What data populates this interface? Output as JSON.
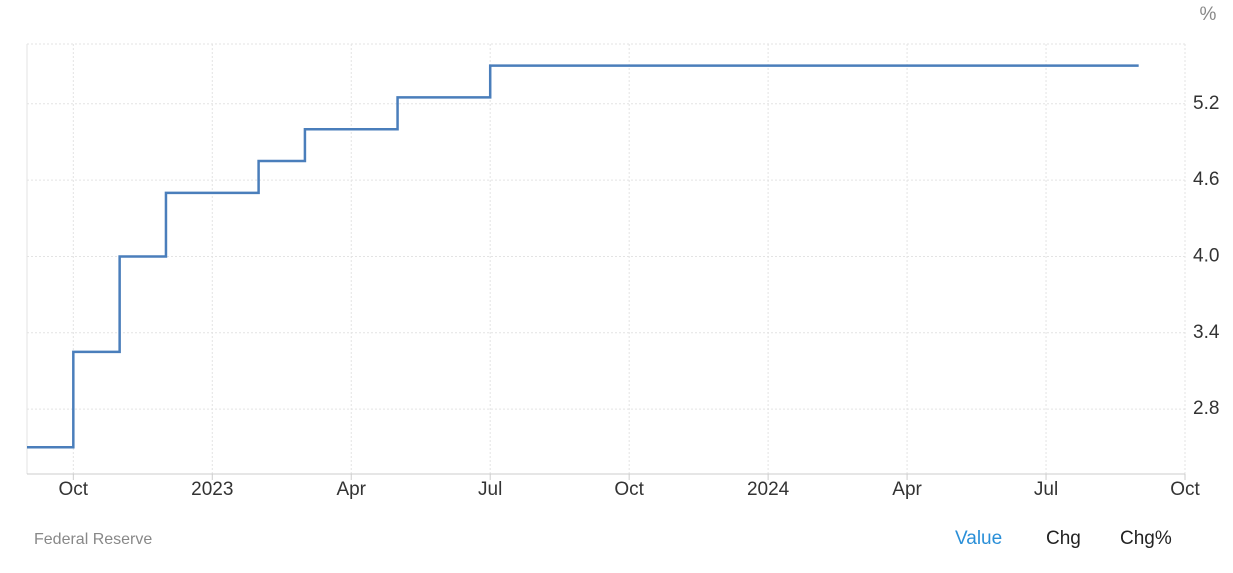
{
  "chart_data": {
    "type": "step",
    "unit": "%",
    "x": [
      "2022-09",
      "2022-10",
      "2022-11",
      "2022-12",
      "2023-02",
      "2023-03",
      "2023-05",
      "2023-07",
      "2024-09"
    ],
    "values": [
      2.5,
      3.25,
      4.0,
      4.5,
      4.75,
      5.0,
      5.25,
      5.5,
      5.5
    ],
    "color": "#4a7ebb",
    "xlim": [
      "2022-09",
      "2024-10"
    ],
    "xticks": [
      {
        "value": "2022-10",
        "label": "Oct"
      },
      {
        "value": "2023-01",
        "label": "2023"
      },
      {
        "value": "2023-04",
        "label": "Apr"
      },
      {
        "value": "2023-07",
        "label": "Jul"
      },
      {
        "value": "2023-10",
        "label": "Oct"
      },
      {
        "value": "2024-01",
        "label": "2024"
      },
      {
        "value": "2024-04",
        "label": "Apr"
      },
      {
        "value": "2024-07",
        "label": "Jul"
      },
      {
        "value": "2024-10",
        "label": "Oct"
      }
    ],
    "ylim": [
      2.29,
      5.67
    ],
    "yticks": [
      2.8,
      3.4,
      {
        "value": 4,
        "label": "4.0"
      },
      4.6,
      5.2
    ],
    "grid": true
  },
  "source": "Federal Reserve",
  "buttons": [
    "Value",
    "Chg",
    "Chg%"
  ]
}
